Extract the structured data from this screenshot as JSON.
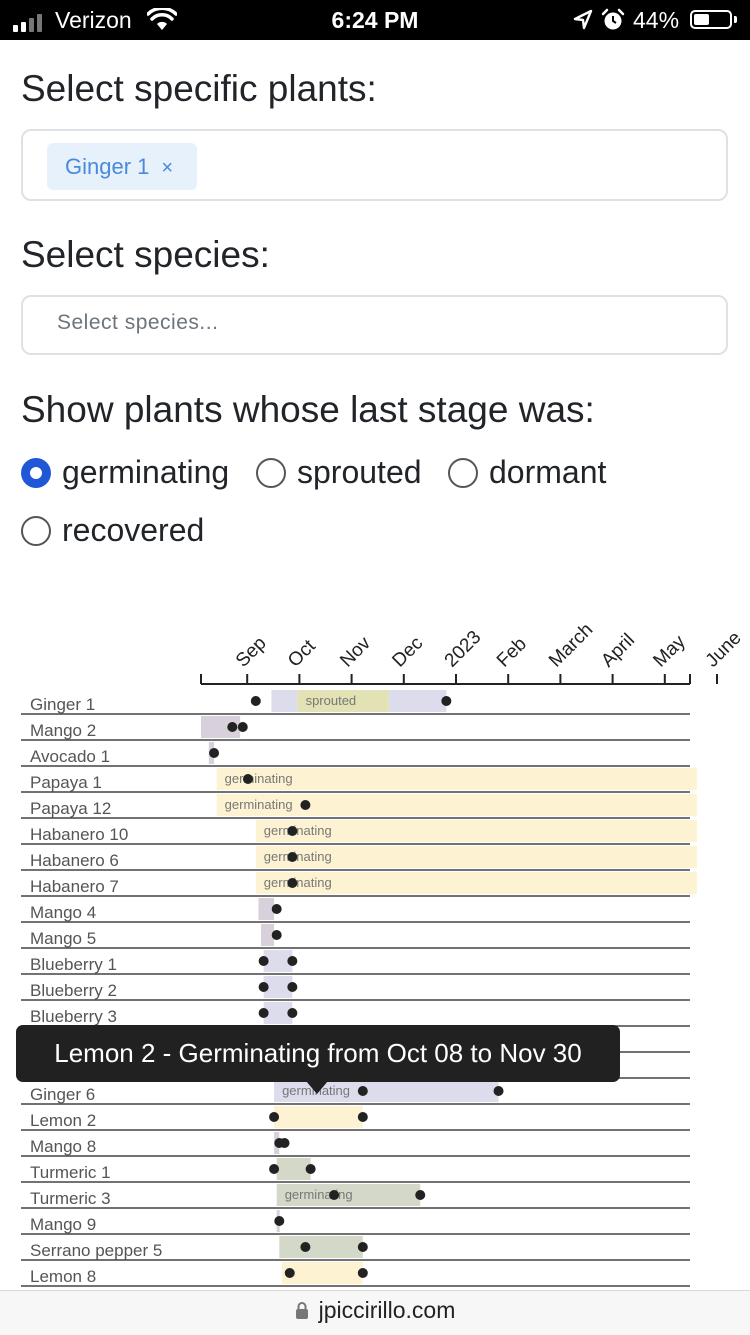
{
  "status_bar": {
    "carrier": "Verizon",
    "time": "6:24 PM",
    "battery": "44%",
    "icons": [
      "signal-icon",
      "wifi-icon",
      "location-arrow-icon",
      "alarm-icon",
      "battery-icon"
    ]
  },
  "plants_filter": {
    "heading": "Select specific plants:",
    "selected": [
      {
        "label": "Ginger 1",
        "remove": "×"
      }
    ]
  },
  "species_filter": {
    "heading": "Select species:",
    "placeholder": "Select species..."
  },
  "stage_filter": {
    "heading": "Show plants whose last stage was:",
    "options": [
      {
        "label": "germinating",
        "checked": true
      },
      {
        "label": "sprouted",
        "checked": false
      },
      {
        "label": "dormant",
        "checked": false
      },
      {
        "label": "recovered",
        "checked": false
      }
    ]
  },
  "chart_data": {
    "type": "timeline",
    "x_ticks": [
      "Sep",
      "Oct",
      "Nov",
      "Dec",
      "2023",
      "Feb",
      "March",
      "April",
      "May",
      "June"
    ],
    "stage_colors": {
      "germinating": "#fdf3d2",
      "sprouted": "#e2e2b4",
      "dormant": "#d8d0da",
      "recovered": "#d4d8c8",
      "other": "#dcdcec"
    },
    "rows": [
      {
        "label": "Ginger 1",
        "bars": [
          {
            "start": 1.35,
            "end": 1.85,
            "stage": "other"
          },
          {
            "start": 1.85,
            "end": 3.6,
            "stage": "sprouted",
            "text": "sprouted"
          },
          {
            "start": 3.6,
            "end": 4.7,
            "stage": "other"
          }
        ],
        "points": [
          1.05,
          4.7
        ]
      },
      {
        "label": "Mango 2",
        "bars": [
          {
            "start": 0.0,
            "end": 0.75,
            "stage": "dormant"
          }
        ],
        "points": [
          0.6,
          0.8
        ]
      },
      {
        "label": "Avocado 1",
        "bars": [
          {
            "start": 0.15,
            "end": 0.25,
            "stage": "dormant"
          }
        ],
        "points": [
          0.25
        ]
      },
      {
        "label": "Papaya 1",
        "bars": [
          {
            "start": 0.3,
            "end": 9.5,
            "stage": "germinating",
            "text": "germinating"
          }
        ],
        "points": [
          0.9
        ]
      },
      {
        "label": "Papaya 12",
        "bars": [
          {
            "start": 0.3,
            "end": 9.5,
            "stage": "germinating",
            "text": "germinating"
          }
        ],
        "points": [
          2.0
        ]
      },
      {
        "label": "Habanero 10",
        "bars": [
          {
            "start": 1.05,
            "end": 9.5,
            "stage": "germinating",
            "text": "germinating"
          }
        ],
        "points": [
          1.75
        ]
      },
      {
        "label": "Habanero 6",
        "bars": [
          {
            "start": 1.05,
            "end": 9.5,
            "stage": "germinating",
            "text": "germinating"
          }
        ],
        "points": [
          1.75
        ]
      },
      {
        "label": "Habanero 7",
        "bars": [
          {
            "start": 1.05,
            "end": 9.5,
            "stage": "germinating",
            "text": "germinating"
          }
        ],
        "points": [
          1.75
        ]
      },
      {
        "label": "Mango 4",
        "bars": [
          {
            "start": 1.1,
            "end": 1.4,
            "stage": "dormant"
          }
        ],
        "points": [
          1.45
        ]
      },
      {
        "label": "Mango 5",
        "bars": [
          {
            "start": 1.15,
            "end": 1.4,
            "stage": "dormant"
          }
        ],
        "points": [
          1.45
        ]
      },
      {
        "label": "Blueberry 1",
        "bars": [
          {
            "start": 1.2,
            "end": 1.75,
            "stage": "other"
          }
        ],
        "points": [
          1.2,
          1.75
        ]
      },
      {
        "label": "Blueberry 2",
        "bars": [
          {
            "start": 1.2,
            "end": 1.75,
            "stage": "other"
          }
        ],
        "points": [
          1.2,
          1.75
        ]
      },
      {
        "label": "Blueberry 3",
        "bars": [
          {
            "start": 1.2,
            "end": 1.75,
            "stage": "other"
          }
        ],
        "points": [
          1.2,
          1.75
        ]
      },
      {
        "label": "",
        "bars": [],
        "points": []
      },
      {
        "label": "",
        "bars": [],
        "points": []
      },
      {
        "label": "Ginger 6",
        "bars": [
          {
            "start": 1.4,
            "end": 5.7,
            "stage": "other",
            "text": "germinating"
          }
        ],
        "points": [
          3.1,
          5.7
        ]
      },
      {
        "label": "Lemon 2",
        "bars": [
          {
            "start": 1.4,
            "end": 3.1,
            "stage": "germinating"
          }
        ],
        "points": [
          1.4,
          3.1
        ]
      },
      {
        "label": "Mango 8",
        "bars": [
          {
            "start": 1.4,
            "end": 1.5,
            "stage": "dormant"
          }
        ],
        "points": [
          1.5,
          1.6
        ]
      },
      {
        "label": "Turmeric 1",
        "bars": [
          {
            "start": 1.45,
            "end": 2.1,
            "stage": "recovered"
          }
        ],
        "points": [
          1.4,
          2.1
        ]
      },
      {
        "label": "Turmeric 3",
        "bars": [
          {
            "start": 1.45,
            "end": 4.2,
            "stage": "recovered",
            "text": "germinating"
          }
        ],
        "points": [
          2.55,
          4.2
        ]
      },
      {
        "label": "Mango 9",
        "bars": [
          {
            "start": 1.45,
            "end": 1.5,
            "stage": "dormant"
          }
        ],
        "points": [
          1.5
        ]
      },
      {
        "label": "Serrano pepper 5",
        "bars": [
          {
            "start": 1.5,
            "end": 3.1,
            "stage": "recovered"
          }
        ],
        "points": [
          2.0,
          3.1
        ]
      },
      {
        "label": "Lemon 8",
        "bars": [
          {
            "start": 1.55,
            "end": 3.1,
            "stage": "germinating"
          }
        ],
        "points": [
          1.7,
          3.1
        ]
      }
    ]
  },
  "tooltip": {
    "text": "Lemon 2 - Germinating from Oct 08 to Nov 30"
  },
  "url_bar": {
    "url": "jpiccirillo.com"
  }
}
